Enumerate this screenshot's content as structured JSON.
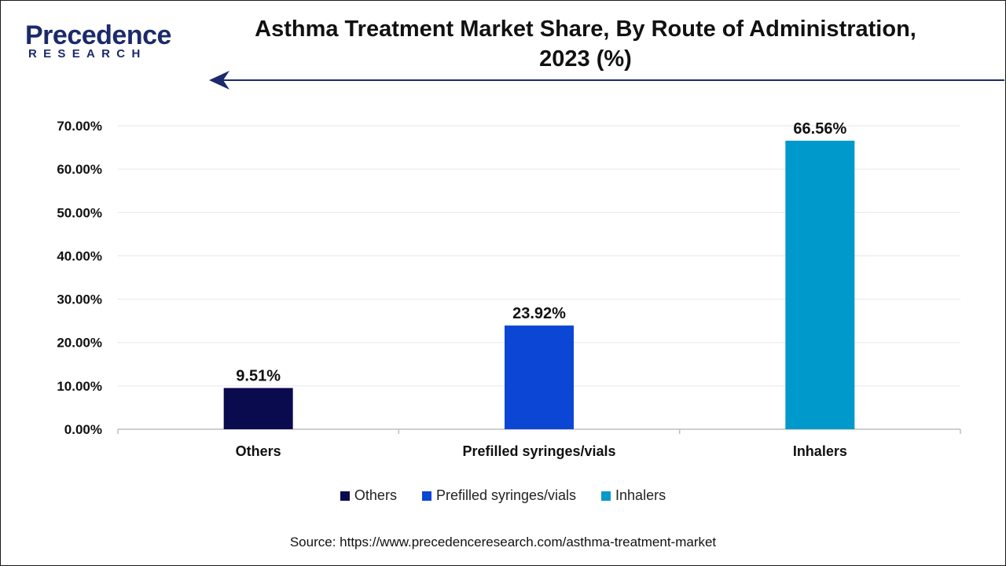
{
  "logo": {
    "brand": "Precedence",
    "sub": "RESEARCH"
  },
  "title_line1": "Asthma Treatment Market Share, By Route of Administration,",
  "title_line2": "2023 (%)",
  "source": "Source: https://www.precedenceresearch.com/asthma-treatment-market",
  "colors": {
    "accent": "#1b2a6b"
  },
  "chart_data": {
    "type": "bar",
    "title": "Asthma Treatment Market Share, By Route of Administration, 2023 (%)",
    "categories": [
      "Others",
      "Prefilled syringes/vials",
      "Inhalers"
    ],
    "values": [
      9.51,
      23.92,
      66.56
    ],
    "value_labels": [
      "9.51%",
      "23.92%",
      "66.56%"
    ],
    "colors": [
      "#0a0a4f",
      "#0c46d4",
      "#0099cc"
    ],
    "ylim": [
      0,
      70
    ],
    "yticks": [
      0,
      10,
      20,
      30,
      40,
      50,
      60,
      70
    ],
    "ytick_labels": [
      "0.00%",
      "10.00%",
      "20.00%",
      "30.00%",
      "40.00%",
      "50.00%",
      "60.00%",
      "70.00%"
    ],
    "xlabel": "",
    "ylabel": "",
    "grid": true,
    "legend": "bottom",
    "legend_entries": [
      "Others",
      "Prefilled syringes/vials",
      "Inhalers"
    ]
  }
}
